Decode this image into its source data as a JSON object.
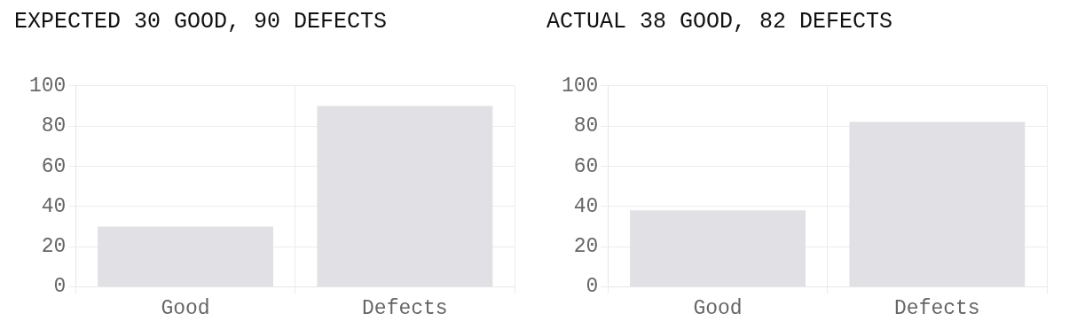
{
  "chart_data": [
    {
      "type": "bar",
      "title": "EXPECTED 30 GOOD, 90 DEFECTS",
      "categories": [
        "Good",
        "Defects"
      ],
      "values": [
        30,
        90
      ],
      "color": "#e1e1e5",
      "ylim": [
        0,
        100
      ],
      "yticks": [
        0,
        20,
        40,
        60,
        80,
        100
      ],
      "grid": true,
      "legend": false
    },
    {
      "type": "bar",
      "title": "ACTUAL 38 GOOD, 82 DEFECTS",
      "categories": [
        "Good",
        "Defects"
      ],
      "values": [
        38,
        82
      ],
      "color": "#e1e1e5",
      "ylim": [
        0,
        100
      ],
      "yticks": [
        0,
        20,
        40,
        60,
        80,
        100
      ],
      "grid": true,
      "legend": false
    }
  ]
}
